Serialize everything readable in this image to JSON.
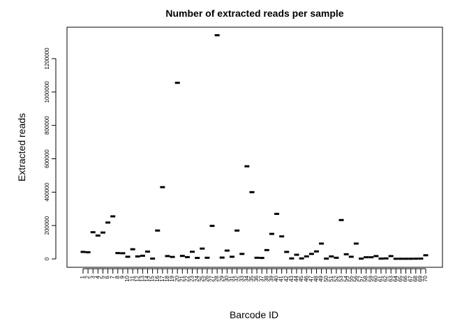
{
  "chart_data": {
    "type": "scatter",
    "marker": "horizontal-bar",
    "title": "Number of extracted reads per sample",
    "xlabel": "Barcode ID",
    "ylabel": "Extracted reads",
    "ylim": [
      -50000,
      1340000
    ],
    "yticks": [
      0,
      200000,
      400000,
      600000,
      800000,
      1000000,
      1200000
    ],
    "ytick_labels": [
      "0",
      "200000",
      "400000",
      "600000",
      "800000",
      "1000000",
      "1200000"
    ],
    "grid": false,
    "legend": "none",
    "categories": [
      "1",
      "2",
      "3",
      "4",
      "5",
      "6",
      "7",
      "8",
      "9",
      "10",
      "11",
      "12",
      "13",
      "14",
      "15",
      "16",
      "17",
      "18",
      "19",
      "20",
      "21",
      "22",
      "23",
      "24",
      "25",
      "26",
      "27",
      "28",
      "29",
      "30",
      "31",
      "32",
      "33",
      "34",
      "35",
      "36",
      "37",
      "38",
      "39",
      "40",
      "41",
      "42",
      "43",
      "44",
      "45",
      "46",
      "47",
      "48",
      "49",
      "50",
      "51",
      "52",
      "53",
      "54",
      "55",
      "56",
      "57",
      "58",
      "59",
      "60",
      "61",
      "62",
      "63",
      "64",
      "65",
      "66",
      "67",
      "68",
      "69",
      "70"
    ],
    "values": [
      42000,
      40000,
      160000,
      140000,
      158000,
      218000,
      255000,
      35000,
      34000,
      13000,
      58000,
      15000,
      19000,
      44000,
      2000,
      170000,
      430000,
      17000,
      12000,
      1055000,
      18000,
      11000,
      43000,
      6000,
      62000,
      7000,
      198000,
      1340000,
      8000,
      50000,
      13000,
      170000,
      30000,
      555000,
      400000,
      7000,
      6000,
      53000,
      150000,
      270000,
      135000,
      42000,
      3000,
      25000,
      3000,
      15000,
      30000,
      45000,
      92000,
      2000,
      15000,
      7000,
      233000,
      28000,
      13000,
      92000,
      2000,
      10000,
      10000,
      17000,
      2000,
      3000,
      17000,
      1000,
      1000,
      1000,
      1000,
      1500,
      2000,
      22000
    ],
    "colors": {
      "marker": "#000000",
      "axis": "#000000",
      "background": "#ffffff"
    }
  }
}
